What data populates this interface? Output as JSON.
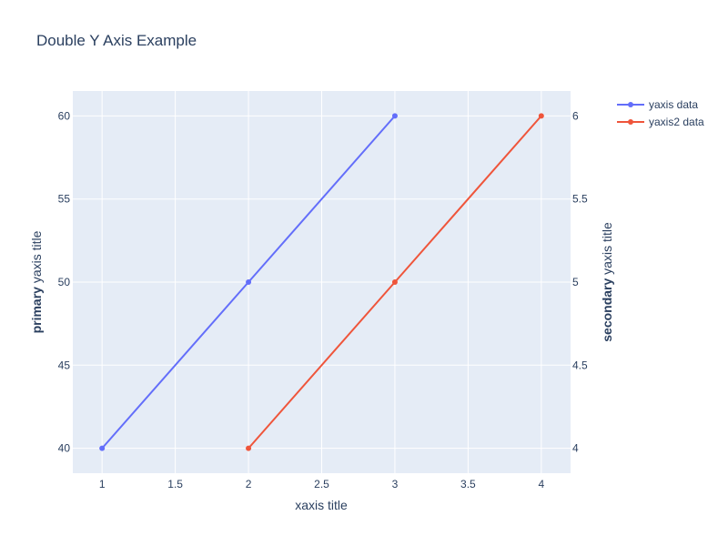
{
  "chart_data": {
    "type": "line",
    "title": "Double Y Axis Example",
    "xlabel": "xaxis title",
    "ylabel": {
      "bold": "primary",
      "rest": " yaxis title"
    },
    "y2label": {
      "bold": "secondary",
      "rest": " yaxis title"
    },
    "xlim": [
      0.8,
      4.2
    ],
    "ylim": [
      38.5,
      61.5
    ],
    "y2lim": [
      3.85,
      6.15
    ],
    "x_ticks": [
      "1",
      "1.5",
      "2",
      "2.5",
      "3",
      "3.5",
      "4"
    ],
    "y_ticks": [
      "40",
      "45",
      "50",
      "55",
      "60"
    ],
    "y2_ticks": [
      "4",
      "4.5",
      "5",
      "5.5",
      "6"
    ],
    "grid": true,
    "legend_position": "top-right, outside plot",
    "plot_background": "#e5ecf6",
    "series": [
      {
        "name": "yaxis data",
        "axis": "y",
        "color": "#636efa",
        "x": [
          1,
          2,
          3
        ],
        "y": [
          40,
          50,
          60
        ]
      },
      {
        "name": "yaxis2 data",
        "axis": "y2",
        "color": "#ef553b",
        "x": [
          2,
          3,
          4
        ],
        "y": [
          4,
          5,
          6
        ]
      }
    ]
  }
}
